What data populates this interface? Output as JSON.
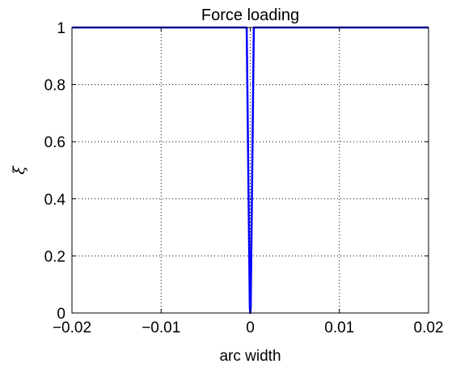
{
  "chart_data": {
    "type": "line",
    "title": "Force loading",
    "xlabel": "arc width",
    "ylabel": "ξ",
    "xlim": [
      -0.02,
      0.02
    ],
    "ylim": [
      0,
      1
    ],
    "xticks": [
      -0.02,
      -0.01,
      0,
      0.01,
      0.02
    ],
    "xtick_labels": [
      "−0.02",
      "−0.01",
      "0",
      "0.01",
      "0.02"
    ],
    "yticks": [
      0,
      0.2,
      0.4,
      0.6,
      0.8,
      1
    ],
    "ytick_labels": [
      "0",
      "0.2",
      "0.4",
      "0.6",
      "0.8",
      "1"
    ],
    "grid": true,
    "line_color": "#0000ff",
    "series": [
      {
        "x": [
          -0.02,
          -0.0004,
          -5e-05,
          0.0,
          5e-05,
          0.0004,
          0.02
        ],
        "y": [
          1.0,
          1.0,
          0.02,
          0.0,
          0.02,
          1.0,
          1.0
        ]
      }
    ]
  }
}
